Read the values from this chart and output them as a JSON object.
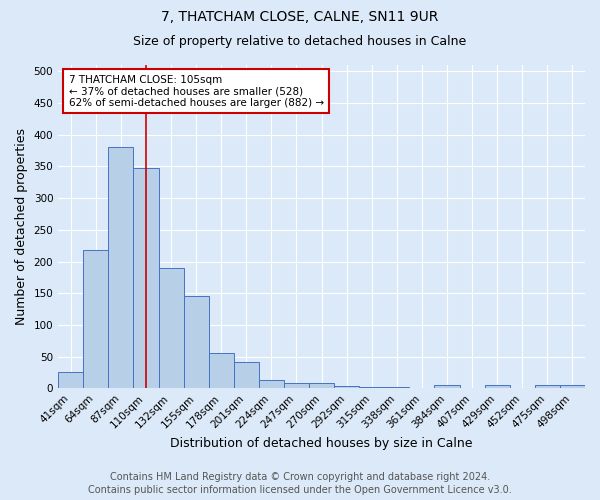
{
  "title_line1": "7, THATCHAM CLOSE, CALNE, SN11 9UR",
  "title_line2": "Size of property relative to detached houses in Calne",
  "xlabel": "Distribution of detached houses by size in Calne",
  "ylabel": "Number of detached properties",
  "categories": [
    "41sqm",
    "64sqm",
    "87sqm",
    "110sqm",
    "132sqm",
    "155sqm",
    "178sqm",
    "201sqm",
    "224sqm",
    "247sqm",
    "270sqm",
    "292sqm",
    "315sqm",
    "338sqm",
    "361sqm",
    "384sqm",
    "407sqm",
    "429sqm",
    "452sqm",
    "475sqm",
    "498sqm"
  ],
  "values": [
    25,
    218,
    380,
    348,
    190,
    145,
    55,
    41,
    13,
    9,
    8,
    4,
    2,
    2,
    1,
    5,
    1,
    5,
    1,
    5,
    5
  ],
  "bar_color": "#b8cfe8",
  "bar_edge_color": "#4472c4",
  "background_color": "#dce9f8",
  "grid_color": "#ffffff",
  "vline_x_index": 3,
  "vline_color": "#cc0000",
  "annotation_text": "7 THATCHAM CLOSE: 105sqm\n← 37% of detached houses are smaller (528)\n62% of semi-detached houses are larger (882) →",
  "annotation_box_color": "#ffffff",
  "annotation_box_edge_color": "#cc0000",
  "ylim": [
    0,
    510
  ],
  "yticks": [
    0,
    50,
    100,
    150,
    200,
    250,
    300,
    350,
    400,
    450,
    500
  ],
  "footer_line1": "Contains HM Land Registry data © Crown copyright and database right 2024.",
  "footer_line2": "Contains public sector information licensed under the Open Government Licence v3.0.",
  "title_fontsize": 10,
  "subtitle_fontsize": 9,
  "axis_label_fontsize": 9,
  "tick_fontsize": 7.5,
  "annotation_fontsize": 7.5,
  "footer_fontsize": 7
}
